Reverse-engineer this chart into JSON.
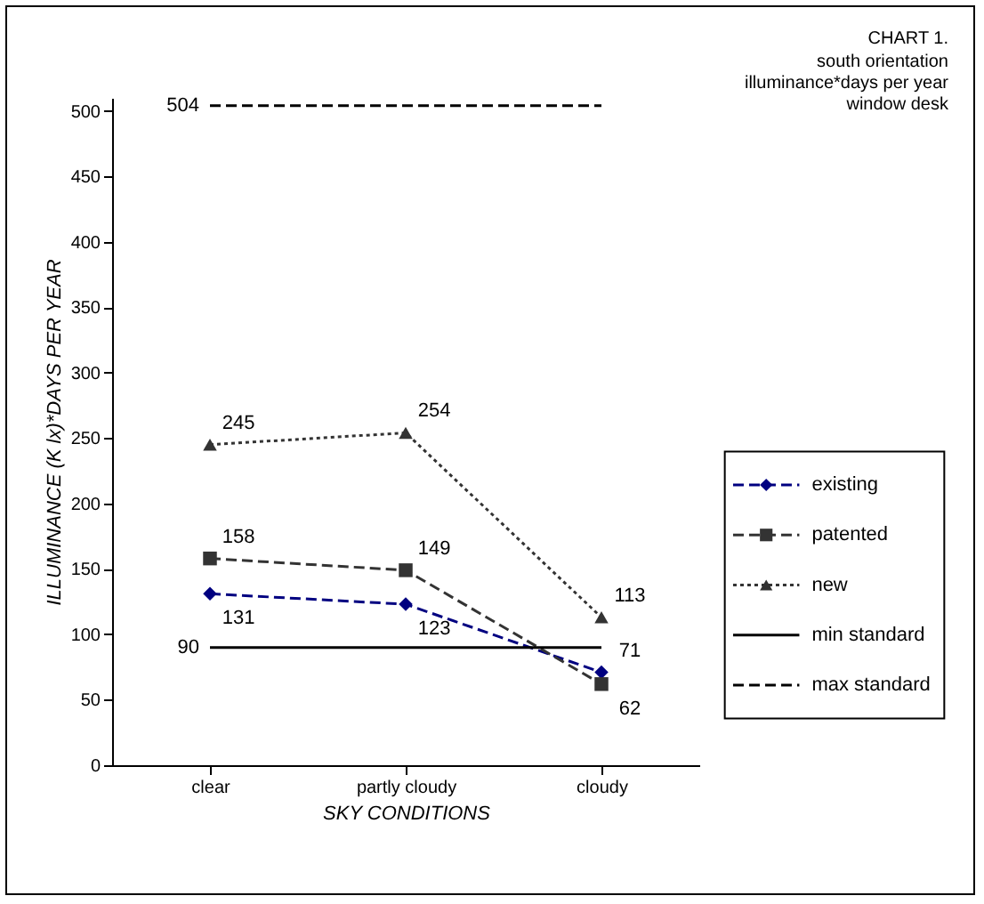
{
  "chart_data": {
    "type": "line",
    "title": "CHART 1.",
    "subtitle": "south orientation",
    "annotations": [
      "illuminance*days per year",
      "window desk"
    ],
    "xlabel": "SKY CONDITIONS",
    "ylabel": "ILLUMINANCE (K lx)*DAYS PER YEAR",
    "categories": [
      "clear",
      "partly cloudy",
      "cloudy"
    ],
    "ylim": [
      0,
      510
    ],
    "yticks": [
      0,
      50,
      100,
      150,
      200,
      250,
      300,
      350,
      400,
      450,
      500
    ],
    "grid": false,
    "legend": "right",
    "series": [
      {
        "name": "existing",
        "color": "#000080",
        "values": [
          131,
          123,
          71
        ],
        "value_labels": [
          "131",
          "123",
          "71"
        ],
        "marker": "diamond",
        "line_style": "dashed"
      },
      {
        "name": "patented",
        "color": "#333333",
        "values": [
          158,
          149,
          62
        ],
        "value_labels": [
          "158",
          "149",
          "62"
        ],
        "marker": "square",
        "line_style": "dashed"
      },
      {
        "name": "new",
        "color": "#333333",
        "values": [
          245,
          254,
          113
        ],
        "value_labels": [
          "245",
          "254",
          "113"
        ],
        "marker": "triangle",
        "line_style": "dotted"
      },
      {
        "name": "min standard",
        "color": "#000000",
        "values": [
          90,
          90,
          90
        ],
        "value_labels": [
          "90",
          null,
          null
        ],
        "marker": "none",
        "line_style": "solid"
      },
      {
        "name": "max standard",
        "color": "#000000",
        "values": [
          504,
          504,
          504
        ],
        "value_labels": [
          "504",
          null,
          null
        ],
        "marker": "none",
        "line_style": "dashed"
      }
    ]
  }
}
